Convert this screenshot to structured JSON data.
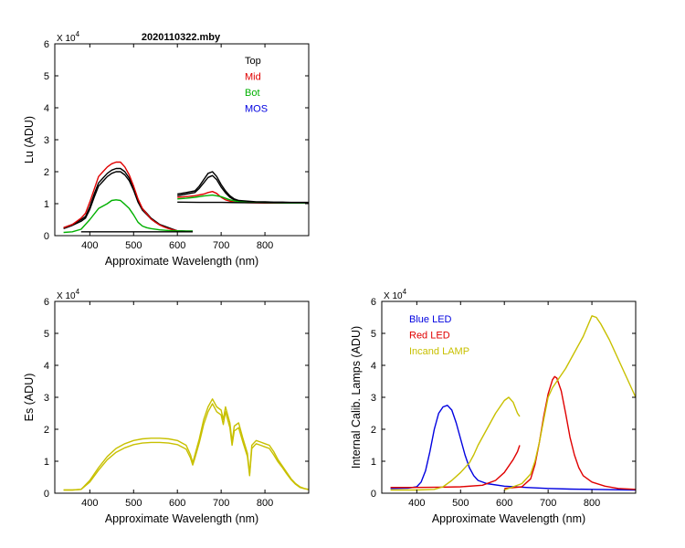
{
  "figure": {
    "title": "2020110322.mby"
  },
  "chart_data": [
    {
      "id": "lu",
      "type": "line",
      "title": "2020110322.mby",
      "xlabel": "Approximate Wavelength (nm)",
      "ylabel": "Lu (ADU)",
      "exponent_label": "X 10",
      "exponent_power": "4",
      "xlim": [
        320,
        900
      ],
      "ylim": [
        0,
        6
      ],
      "xticks": [
        400,
        500,
        600,
        700,
        800
      ],
      "yticks": [
        0,
        1,
        2,
        3,
        4,
        5,
        6
      ],
      "legend": {
        "placement": "top-right",
        "entries": [
          {
            "label": "Top",
            "color": "#000000"
          },
          {
            "label": "Mid",
            "color": "#e00000"
          },
          {
            "label": "Bot",
            "color": "#00b000"
          },
          {
            "label": "MOS",
            "color": "#0000e0"
          }
        ]
      },
      "series": [
        {
          "name": "Top",
          "color": "#000000",
          "x": [
            340,
            360,
            380,
            390,
            400,
            410,
            420,
            430,
            440,
            450,
            460,
            470,
            480,
            490,
            500,
            510,
            520,
            530,
            540,
            550,
            560,
            570,
            580,
            590,
            600,
            610,
            620,
            630,
            635
          ],
          "y": [
            0.25,
            0.35,
            0.5,
            0.6,
            0.9,
            1.3,
            1.65,
            1.8,
            1.95,
            2.05,
            2.1,
            2.1,
            2.0,
            1.8,
            1.5,
            1.1,
            0.85,
            0.7,
            0.55,
            0.45,
            0.35,
            0.3,
            0.25,
            0.2,
            0.15,
            0.15,
            0.14,
            0.14,
            0.14
          ]
        },
        {
          "name": "Top",
          "color": "#000000",
          "x": [
            340,
            360,
            380,
            390,
            400,
            410,
            420,
            430,
            440,
            450,
            460,
            470,
            480,
            490,
            500,
            510,
            520,
            530,
            540,
            550,
            560,
            570,
            580,
            590,
            600,
            610,
            620,
            630,
            635
          ],
          "y": [
            0.22,
            0.32,
            0.45,
            0.55,
            0.82,
            1.2,
            1.55,
            1.7,
            1.85,
            1.95,
            2.0,
            2.0,
            1.9,
            1.72,
            1.42,
            1.05,
            0.8,
            0.66,
            0.52,
            0.42,
            0.33,
            0.28,
            0.23,
            0.19,
            0.15,
            0.14,
            0.14,
            0.14,
            0.14
          ]
        },
        {
          "name": "Mid",
          "color": "#e00000",
          "x": [
            340,
            360,
            380,
            390,
            400,
            410,
            420,
            430,
            440,
            450,
            460,
            470,
            480,
            490,
            500,
            510,
            520,
            530,
            540,
            550,
            560,
            570,
            580,
            590,
            600
          ],
          "y": [
            0.25,
            0.35,
            0.55,
            0.7,
            1.05,
            1.45,
            1.85,
            2.0,
            2.15,
            2.25,
            2.3,
            2.3,
            2.15,
            1.9,
            1.55,
            1.15,
            0.85,
            0.68,
            0.52,
            0.42,
            0.33,
            0.27,
            0.22,
            0.18,
            0.15
          ]
        },
        {
          "name": "Bot",
          "color": "#00b000",
          "x": [
            340,
            360,
            380,
            400,
            420,
            440,
            450,
            460,
            470,
            480,
            490,
            500,
            510,
            520,
            530,
            540,
            560,
            580,
            600,
            620,
            635
          ],
          "y": [
            0.1,
            0.12,
            0.2,
            0.5,
            0.85,
            1.0,
            1.1,
            1.12,
            1.1,
            0.98,
            0.85,
            0.65,
            0.42,
            0.3,
            0.25,
            0.22,
            0.18,
            0.16,
            0.15,
            0.14,
            0.14
          ]
        },
        {
          "name": "MOS",
          "color": "#000000",
          "x": [
            380,
            400,
            450,
            500,
            550,
            600,
            635
          ],
          "y": [
            0.12,
            0.12,
            0.12,
            0.12,
            0.12,
            0.12,
            0.12
          ]
        },
        {
          "name": "Top",
          "color": "#000000",
          "x": [
            600,
            620,
            640,
            650,
            660,
            670,
            680,
            690,
            700,
            710,
            720,
            730,
            740,
            760,
            780,
            800,
            820,
            840,
            860,
            880,
            900
          ],
          "y": [
            1.3,
            1.35,
            1.4,
            1.55,
            1.75,
            1.95,
            2.0,
            1.85,
            1.6,
            1.4,
            1.25,
            1.15,
            1.1,
            1.08,
            1.06,
            1.06,
            1.05,
            1.05,
            1.04,
            1.04,
            1.04
          ]
        },
        {
          "name": "Top",
          "color": "#000000",
          "x": [
            600,
            620,
            640,
            650,
            660,
            670,
            680,
            690,
            700,
            710,
            720,
            730,
            740,
            760,
            780,
            800,
            820,
            840,
            860,
            880,
            900
          ],
          "y": [
            1.25,
            1.3,
            1.35,
            1.48,
            1.65,
            1.82,
            1.88,
            1.75,
            1.52,
            1.34,
            1.2,
            1.12,
            1.08,
            1.06,
            1.05,
            1.05,
            1.04,
            1.04,
            1.03,
            1.03,
            1.03
          ]
        },
        {
          "name": "Mid",
          "color": "#e00000",
          "x": [
            600,
            620,
            640,
            660,
            670,
            680,
            690,
            700,
            710,
            720,
            730,
            740,
            760,
            800,
            850,
            900
          ],
          "y": [
            1.2,
            1.22,
            1.25,
            1.3,
            1.35,
            1.38,
            1.32,
            1.2,
            1.12,
            1.08,
            1.05,
            1.04,
            1.03,
            1.02,
            1.02,
            1.02
          ]
        },
        {
          "name": "Bot",
          "color": "#00b000",
          "x": [
            600,
            620,
            640,
            660,
            680,
            700,
            720,
            740,
            760,
            800,
            850,
            900
          ],
          "y": [
            1.15,
            1.17,
            1.2,
            1.24,
            1.27,
            1.22,
            1.12,
            1.06,
            1.04,
            1.03,
            1.02,
            1.02
          ]
        },
        {
          "name": "MOS",
          "color": "#000000",
          "x": [
            600,
            650,
            700,
            750,
            800,
            850,
            900
          ],
          "y": [
            1.05,
            1.04,
            1.04,
            1.03,
            1.03,
            1.03,
            1.03
          ]
        }
      ]
    },
    {
      "id": "es",
      "type": "line",
      "title": "",
      "xlabel": "Approximate Wavelength (nm)",
      "ylabel": "Es  (ADU)",
      "exponent_label": "X 10",
      "exponent_power": "4",
      "xlim": [
        320,
        900
      ],
      "ylim": [
        0,
        6
      ],
      "xticks": [
        400,
        500,
        600,
        700,
        800
      ],
      "yticks": [
        0,
        1,
        2,
        3,
        4,
        5,
        6
      ],
      "series": [
        {
          "name": "Es",
          "color": "#c8c000",
          "x": [
            340,
            360,
            380,
            400,
            420,
            440,
            460,
            480,
            500,
            520,
            540,
            560,
            580,
            600,
            620,
            630,
            635,
            640,
            650,
            660,
            670,
            680,
            690,
            700,
            705,
            710,
            720,
            725,
            730,
            740,
            750,
            760,
            765,
            770,
            780,
            790,
            800,
            810,
            820,
            830,
            840,
            850,
            860,
            870,
            880,
            890,
            900
          ],
          "y": [
            0.1,
            0.1,
            0.12,
            0.4,
            0.8,
            1.15,
            1.4,
            1.55,
            1.65,
            1.7,
            1.72,
            1.72,
            1.7,
            1.65,
            1.5,
            1.2,
            0.95,
            1.2,
            1.7,
            2.3,
            2.7,
            2.95,
            2.7,
            2.6,
            2.3,
            2.7,
            2.2,
            1.6,
            2.1,
            2.2,
            1.7,
            1.25,
            0.6,
            1.5,
            1.65,
            1.6,
            1.55,
            1.5,
            1.3,
            1.05,
            0.85,
            0.65,
            0.45,
            0.3,
            0.2,
            0.15,
            0.12
          ]
        },
        {
          "name": "Es",
          "color": "#c8c000",
          "x": [
            340,
            360,
            380,
            400,
            420,
            440,
            460,
            480,
            500,
            520,
            540,
            560,
            580,
            600,
            620,
            630,
            635,
            640,
            650,
            660,
            670,
            680,
            690,
            700,
            705,
            710,
            720,
            725,
            730,
            740,
            750,
            760,
            765,
            770,
            780,
            790,
            800,
            810,
            820,
            830,
            840,
            850,
            860,
            870,
            880,
            890,
            900
          ],
          "y": [
            0.1,
            0.1,
            0.12,
            0.35,
            0.72,
            1.05,
            1.28,
            1.42,
            1.52,
            1.57,
            1.59,
            1.59,
            1.57,
            1.52,
            1.38,
            1.1,
            0.88,
            1.1,
            1.58,
            2.15,
            2.55,
            2.8,
            2.55,
            2.45,
            2.15,
            2.55,
            2.05,
            1.5,
            1.95,
            2.05,
            1.58,
            1.15,
            0.55,
            1.4,
            1.55,
            1.5,
            1.45,
            1.4,
            1.2,
            0.98,
            0.8,
            0.6,
            0.42,
            0.28,
            0.18,
            0.14,
            0.11
          ]
        }
      ]
    },
    {
      "id": "lamps",
      "type": "line",
      "title": "",
      "xlabel": "Approximate Wavelength (nm)",
      "ylabel": "Internal Calib. Lamps  (ADU)",
      "exponent_label": "X 10",
      "exponent_power": "4",
      "xlim": [
        320,
        900
      ],
      "ylim": [
        0,
        6
      ],
      "xticks": [
        400,
        500,
        600,
        700,
        800
      ],
      "yticks": [
        0,
        1,
        2,
        3,
        4,
        5,
        6
      ],
      "legend": {
        "placement": "top-left",
        "entries": [
          {
            "label": "Blue LED",
            "color": "#0000e0"
          },
          {
            "label": "Red LED",
            "color": "#e00000"
          },
          {
            "label": "Incand LAMP",
            "color": "#c8c000"
          }
        ]
      },
      "series": [
        {
          "name": "Blue LED",
          "color": "#0000e0",
          "x": [
            340,
            380,
            400,
            410,
            420,
            430,
            440,
            450,
            460,
            470,
            480,
            490,
            500,
            510,
            520,
            530,
            540,
            560,
            600,
            650,
            700,
            750,
            800,
            900
          ],
          "y": [
            0.15,
            0.16,
            0.2,
            0.35,
            0.7,
            1.3,
            2.0,
            2.5,
            2.7,
            2.75,
            2.6,
            2.2,
            1.7,
            1.2,
            0.8,
            0.55,
            0.4,
            0.3,
            0.22,
            0.18,
            0.15,
            0.13,
            0.12,
            0.1
          ]
        },
        {
          "name": "Red LED",
          "color": "#e00000",
          "x": [
            340,
            400,
            450,
            500,
            550,
            580,
            600,
            620,
            630,
            635
          ],
          "y": [
            0.18,
            0.18,
            0.19,
            0.2,
            0.25,
            0.4,
            0.65,
            1.05,
            1.3,
            1.5
          ]
        },
        {
          "name": "Red LED",
          "color": "#e00000",
          "x": [
            600,
            640,
            660,
            670,
            680,
            690,
            700,
            710,
            715,
            720,
            730,
            740,
            750,
            760,
            770,
            780,
            800,
            830,
            860,
            900
          ],
          "y": [
            0.15,
            0.2,
            0.45,
            0.9,
            1.6,
            2.4,
            3.1,
            3.55,
            3.65,
            3.6,
            3.2,
            2.5,
            1.75,
            1.2,
            0.8,
            0.55,
            0.35,
            0.22,
            0.15,
            0.12
          ]
        },
        {
          "name": "Incand LAMP",
          "color": "#c8c000",
          "x": [
            340,
            400,
            440,
            460,
            480,
            500,
            520,
            530,
            540,
            560,
            580,
            600,
            610,
            620,
            630,
            635
          ],
          "y": [
            0.1,
            0.1,
            0.12,
            0.2,
            0.4,
            0.65,
            0.95,
            1.2,
            1.5,
            2.0,
            2.5,
            2.9,
            3.0,
            2.85,
            2.5,
            2.4
          ]
        },
        {
          "name": "Incand LAMP",
          "color": "#c8c000",
          "x": [
            600,
            640,
            660,
            670,
            680,
            690,
            700,
            710,
            720,
            740,
            760,
            780,
            800,
            810,
            820,
            840,
            860,
            880,
            900
          ],
          "y": [
            0.1,
            0.3,
            0.6,
            1.0,
            1.6,
            2.3,
            3.0,
            3.3,
            3.5,
            3.9,
            4.4,
            4.9,
            5.55,
            5.5,
            5.3,
            4.8,
            4.2,
            3.6,
            3.0
          ]
        }
      ]
    }
  ]
}
